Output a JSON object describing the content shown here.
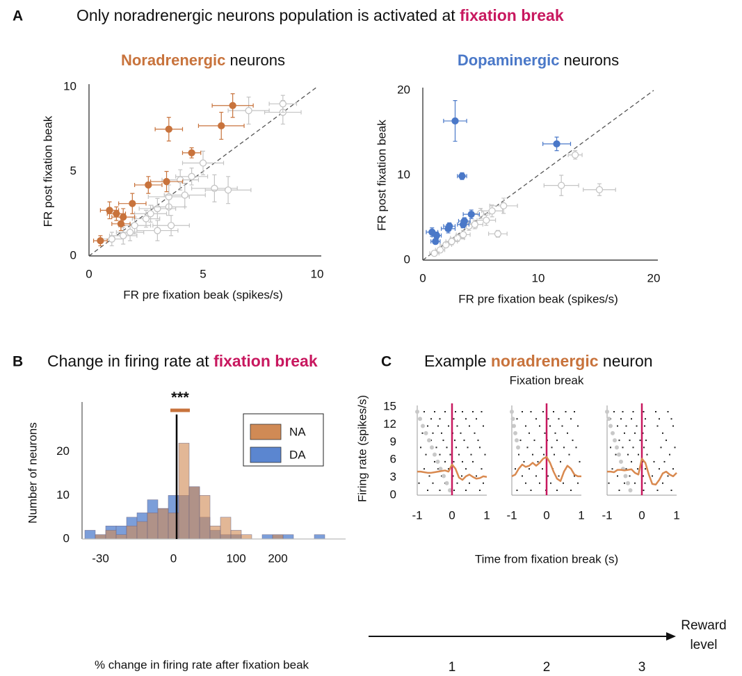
{
  "headers": [
    {
      "letter": "A",
      "title": [
        {
          "text": "Only noradrenergic neurons population is activated at ",
          "color": "#111111",
          "bold": false
        },
        {
          "text": "fixation break",
          "color": "#c8185f",
          "bold": true
        }
      ]
    },
    {
      "letter": "B",
      "title": [
        {
          "text": "Change in firing rate at ",
          "color": "#111111",
          "bold": false
        },
        {
          "text": "fixation break",
          "color": "#c8185f",
          "bold": true
        }
      ]
    },
    {
      "letter": "C",
      "title": [
        {
          "text": "Example ",
          "color": "#111111",
          "bold": false
        },
        {
          "text": "noradrenergic",
          "color": "#c8733c",
          "bold": true
        },
        {
          "text": " neuron",
          "color": "#111111",
          "bold": false
        }
      ]
    }
  ],
  "chart_data": [
    {
      "type": "scatter",
      "title": [
        {
          "text": "Noradrenergic",
          "color": "#c8733c",
          "bold": true
        },
        {
          "text": " neurons",
          "color": "#111111",
          "bold": false
        }
      ],
      "xlabel": "FR pre fixation beak (spikes/s)",
      "ylabel": "FR post fixation beak",
      "xlim": [
        0,
        10
      ],
      "ylim": [
        0,
        10
      ],
      "xticks": [
        0,
        5,
        10
      ],
      "yticks": [
        0,
        5,
        10
      ],
      "diagonal": true,
      "series": [
        {
          "color": "#c4c4c4",
          "filled": false,
          "x": [
            1.0,
            1.5,
            2.0,
            2.5,
            3.0,
            3.5,
            3.5,
            4.0,
            4.5,
            5.0,
            5.5,
            6.1,
            7.0,
            8.5,
            8.5,
            3.0,
            3.6,
            1.8,
            2.7,
            4.2
          ],
          "y": [
            1.0,
            1.2,
            1.8,
            2.2,
            2.8,
            2.9,
            3.5,
            4.5,
            4.7,
            5.5,
            4.0,
            3.9,
            8.6,
            8.5,
            9.0,
            1.5,
            1.8,
            1.4,
            2.5,
            3.6
          ],
          "xerr": [
            0.5,
            0.6,
            0.7,
            0.6,
            0.8,
            0.7,
            0.9,
            0.8,
            0.7,
            0.9,
            1.0,
            1.0,
            0.9,
            0.8,
            0.6,
            0.9,
            0.8,
            0.6,
            0.7,
            0.9
          ],
          "yerr": [
            0.4,
            0.5,
            0.5,
            0.5,
            0.6,
            0.5,
            0.7,
            0.6,
            0.5,
            0.7,
            0.8,
            0.8,
            0.8,
            0.7,
            0.5,
            0.6,
            0.6,
            0.5,
            0.5,
            0.7
          ]
        },
        {
          "color": "#c8733c",
          "filled": true,
          "x": [
            0.5,
            0.9,
            1.2,
            1.5,
            1.4,
            1.9,
            2.6,
            3.4,
            4.5,
            3.5,
            5.8,
            6.3
          ],
          "y": [
            0.9,
            2.7,
            2.5,
            2.3,
            1.9,
            3.1,
            4.2,
            4.4,
            6.1,
            7.5,
            7.7,
            8.9
          ],
          "xerr": [
            0.3,
            0.4,
            0.4,
            0.5,
            0.4,
            0.6,
            0.6,
            0.7,
            0.4,
            0.6,
            1.0,
            0.9
          ],
          "yerr": [
            0.3,
            0.5,
            0.4,
            0.5,
            0.4,
            0.6,
            0.5,
            0.6,
            0.3,
            0.7,
            0.8,
            0.7
          ]
        }
      ]
    },
    {
      "type": "scatter",
      "title": [
        {
          "text": "Dopaminergic",
          "color": "#4a78c8",
          "bold": true
        },
        {
          "text": " neurons",
          "color": "#111111",
          "bold": false
        }
      ],
      "xlabel": "FR pre fixation beak (spikes/s)",
      "ylabel": "FR post fixation beak",
      "xlim": [
        0,
        20
      ],
      "ylim": [
        0,
        20
      ],
      "xticks": [
        0,
        10,
        20
      ],
      "yticks": [
        0,
        10,
        20
      ],
      "diagonal": true,
      "series": [
        {
          "color": "#c4c4c4",
          "filled": false,
          "x": [
            12.0,
            15.3,
            13.2,
            7.0,
            6.5,
            5.0,
            4.0,
            3.0,
            2.0,
            1.5,
            1.0,
            2.5,
            3.5,
            4.5,
            6.0,
            5.5
          ],
          "y": [
            8.8,
            8.3,
            12.4,
            6.4,
            3.1,
            5.5,
            4.0,
            2.6,
            1.8,
            1.2,
            0.8,
            2.2,
            3.0,
            4.2,
            5.8,
            4.7
          ],
          "xerr": [
            1.5,
            1.4,
            0.6,
            1.2,
            0.8,
            0.8,
            0.7,
            0.6,
            0.5,
            0.4,
            0.4,
            0.5,
            0.6,
            0.7,
            0.9,
            0.8
          ],
          "yerr": [
            1.2,
            0.7,
            0.5,
            0.9,
            0.4,
            0.6,
            0.5,
            0.4,
            0.3,
            0.3,
            0.3,
            0.4,
            0.5,
            0.5,
            0.7,
            0.6
          ]
        },
        {
          "color": "#4a78c8",
          "filled": true,
          "x": [
            0.8,
            1.2,
            1.1,
            2.2,
            2.3,
            3.5,
            3.6,
            4.2,
            2.8,
            3.4,
            11.6
          ],
          "y": [
            3.3,
            2.9,
            2.2,
            3.7,
            4.0,
            4.2,
            4.6,
            5.4,
            16.4,
            9.9,
            13.7
          ],
          "xerr": [
            0.5,
            0.4,
            0.4,
            0.6,
            0.5,
            0.5,
            0.5,
            0.7,
            1.0,
            0.4,
            1.2
          ],
          "yerr": [
            0.5,
            0.4,
            0.3,
            0.5,
            0.4,
            0.4,
            0.4,
            0.5,
            2.4,
            0.4,
            0.8
          ]
        }
      ]
    },
    {
      "type": "histogram",
      "xlabel": "% change in firing rate after fixation beak",
      "ylabel": "Number of neurons",
      "categories": [
        null,
        "-30",
        null,
        null,
        null,
        null,
        null,
        null,
        "0",
        null,
        null,
        null,
        null,
        null,
        "100",
        null,
        null,
        null,
        "200",
        null,
        null,
        null,
        null,
        null,
        null
      ],
      "ylim": [
        0,
        30
      ],
      "yticks": [
        0,
        10,
        20
      ],
      "legend": "upper right",
      "annotation": {
        "text": "***",
        "color": "#c8733c"
      },
      "series": [
        {
          "name": "DA",
          "color": "#5b86d0",
          "values": [
            2,
            1,
            3,
            3,
            5,
            6,
            9,
            7,
            10,
            10,
            12,
            5,
            2,
            1,
            1,
            0,
            0,
            1,
            1,
            1,
            0,
            0,
            1,
            0,
            0
          ]
        },
        {
          "name": "NA",
          "color": "#d08a55",
          "values": [
            0,
            1,
            2,
            1,
            3,
            4,
            6,
            7,
            6,
            22,
            12,
            10,
            3,
            5,
            2,
            1,
            0,
            0,
            1,
            0,
            0,
            0,
            0,
            0,
            0
          ]
        }
      ]
    },
    {
      "type": "raster",
      "xlabel": "Time from fixation break (s)",
      "ylabel": "Firing rate (spikes/s)",
      "xlim": [
        -1,
        1
      ],
      "ylim": [
        0,
        15
      ],
      "xticks": [
        -1,
        0,
        1
      ],
      "yticks": [
        0,
        3,
        6,
        9,
        12,
        15
      ],
      "annotation": {
        "text": "Fixation break",
        "x": 0,
        "color": "#c8185f"
      },
      "rate_color": "#d9894f",
      "onset_color": "#c8c8c8",
      "axis_label": [
        "Reward",
        "level"
      ],
      "x": [
        -1,
        -0.9,
        -0.8,
        -0.7,
        -0.6,
        -0.5,
        -0.4,
        -0.3,
        -0.2,
        -0.1,
        0,
        0.1,
        0.2,
        0.3,
        0.4,
        0.5,
        0.6,
        0.7,
        0.8,
        0.9,
        1
      ],
      "panels": [
        {
          "label": "1",
          "rate": [
            4,
            4,
            3.9,
            3.8,
            3.8,
            3.9,
            4.0,
            4.1,
            4.2,
            4.0,
            5.2,
            4.5,
            3.0,
            2.6,
            3.2,
            3.5,
            3.1,
            2.8,
            2.9,
            3.2,
            3.1
          ],
          "onsets": [
            -1,
            -0.92,
            -0.84,
            -0.75,
            -0.66,
            -0.58,
            -0.5,
            -0.41,
            -0.33,
            -0.24,
            -0.15,
            -0.06
          ],
          "spikes": [
            [
              -0.8,
              -0.5,
              -0.2,
              0.1,
              0.3,
              0.6,
              0.85
            ],
            [
              -0.9,
              -0.6,
              -0.35,
              0.05,
              0.4,
              0.7
            ],
            [
              -0.7,
              -0.4,
              -0.1,
              0.15,
              0.5,
              0.9
            ],
            [
              -0.85,
              -0.55,
              -0.3,
              0.02,
              0.25,
              0.65
            ],
            [
              -0.6,
              -0.25,
              0.08,
              0.35,
              0.75
            ],
            [
              -0.9,
              -0.45,
              -0.15,
              0.12,
              0.45,
              0.8
            ],
            [
              -0.75,
              -0.35,
              -0.05,
              0.2,
              0.55,
              0.95
            ],
            [
              -0.5,
              -0.2,
              0.05,
              0.3,
              0.6
            ],
            [
              -0.8,
              -0.4,
              -0.1,
              0.1,
              0.4,
              0.85
            ],
            [
              -0.65,
              -0.3,
              0.03,
              0.28,
              0.7
            ],
            [
              -0.95,
              -0.55,
              -0.2,
              0.15,
              0.5,
              0.9
            ],
            [
              -0.7,
              -0.35,
              0.06,
              0.4,
              0.8
            ]
          ]
        },
        {
          "label": "2",
          "rate": [
            3.2,
            3.5,
            4.5,
            5.2,
            4.8,
            5.0,
            5.5,
            5.0,
            5.5,
            6.2,
            6.5,
            5.5,
            4.0,
            2.8,
            2.4,
            4.0,
            5.0,
            4.5,
            3.5,
            3.2,
            3.2
          ],
          "onsets": [
            -1,
            -0.97,
            -0.94,
            -0.9,
            -0.86,
            -0.82
          ],
          "spikes": [
            [
              -0.7,
              -0.45,
              -0.1,
              0.2,
              0.55,
              0.8
            ],
            [
              -0.85,
              -0.3,
              0.05,
              0.35,
              0.7
            ],
            [
              -0.6,
              -0.2,
              0.1,
              0.45,
              0.9
            ],
            [
              -0.9,
              -0.5,
              -0.05,
              0.25,
              0.6
            ],
            [
              -0.75,
              -0.35,
              0.02,
              0.3,
              0.75
            ],
            [
              -0.55,
              -0.15,
              0.15,
              0.5,
              0.85
            ],
            [
              -0.8,
              -0.4,
              -0.08,
              0.22,
              0.65
            ],
            [
              -0.65,
              -0.25,
              0.08,
              0.4,
              0.95
            ],
            [
              -0.9,
              -0.5,
              -0.12,
              0.18,
              0.55
            ],
            [
              -0.7,
              -0.3,
              0.04,
              0.35,
              0.8
            ],
            [
              -0.6,
              -0.2,
              0.12,
              0.48,
              0.9
            ],
            [
              -0.85,
              -0.45,
              -0.02,
              0.3,
              0.7
            ]
          ]
        },
        {
          "label": "3",
          "rate": [
            4.0,
            4.0,
            3.9,
            4.3,
            4.3,
            4.2,
            4.3,
            4.4,
            3.8,
            3.5,
            6.2,
            5.5,
            3.5,
            1.9,
            1.8,
            2.6,
            3.7,
            4.0,
            3.5,
            3.2,
            3.8
          ],
          "onsets": [
            -1,
            -0.95,
            -0.9,
            -0.84,
            -0.78,
            -0.72,
            -0.66,
            -0.6,
            -0.54,
            -0.47,
            -0.4,
            -0.33
          ],
          "spikes": [
            [
              -0.8,
              -0.55,
              -0.25,
              0.05,
              0.4,
              0.75
            ],
            [
              -0.9,
              -0.6,
              -0.3,
              0.1,
              0.5,
              0.85
            ],
            [
              -0.7,
              -0.45,
              -0.15,
              0.08,
              0.45,
              0.9
            ],
            [
              -0.85,
              -0.5,
              -0.2,
              0.03,
              0.6
            ],
            [
              -0.65,
              -0.35,
              -0.05,
              0.12,
              0.7
            ],
            [
              -0.9,
              -0.55,
              -0.25,
              0.06,
              0.55,
              0.95
            ],
            [
              -0.75,
              -0.4,
              -0.1,
              0.15,
              0.8
            ],
            [
              -0.6,
              -0.3,
              0.02,
              0.35,
              0.65
            ],
            [
              -0.85,
              -0.45,
              -0.12,
              0.1,
              0.5,
              0.9
            ],
            [
              -0.7,
              -0.35,
              0.04,
              0.3,
              0.75
            ],
            [
              -0.95,
              -0.5,
              -0.2,
              0.09,
              0.6
            ],
            [
              -0.65,
              -0.3,
              0.05,
              0.45,
              0.85
            ]
          ]
        }
      ]
    }
  ]
}
